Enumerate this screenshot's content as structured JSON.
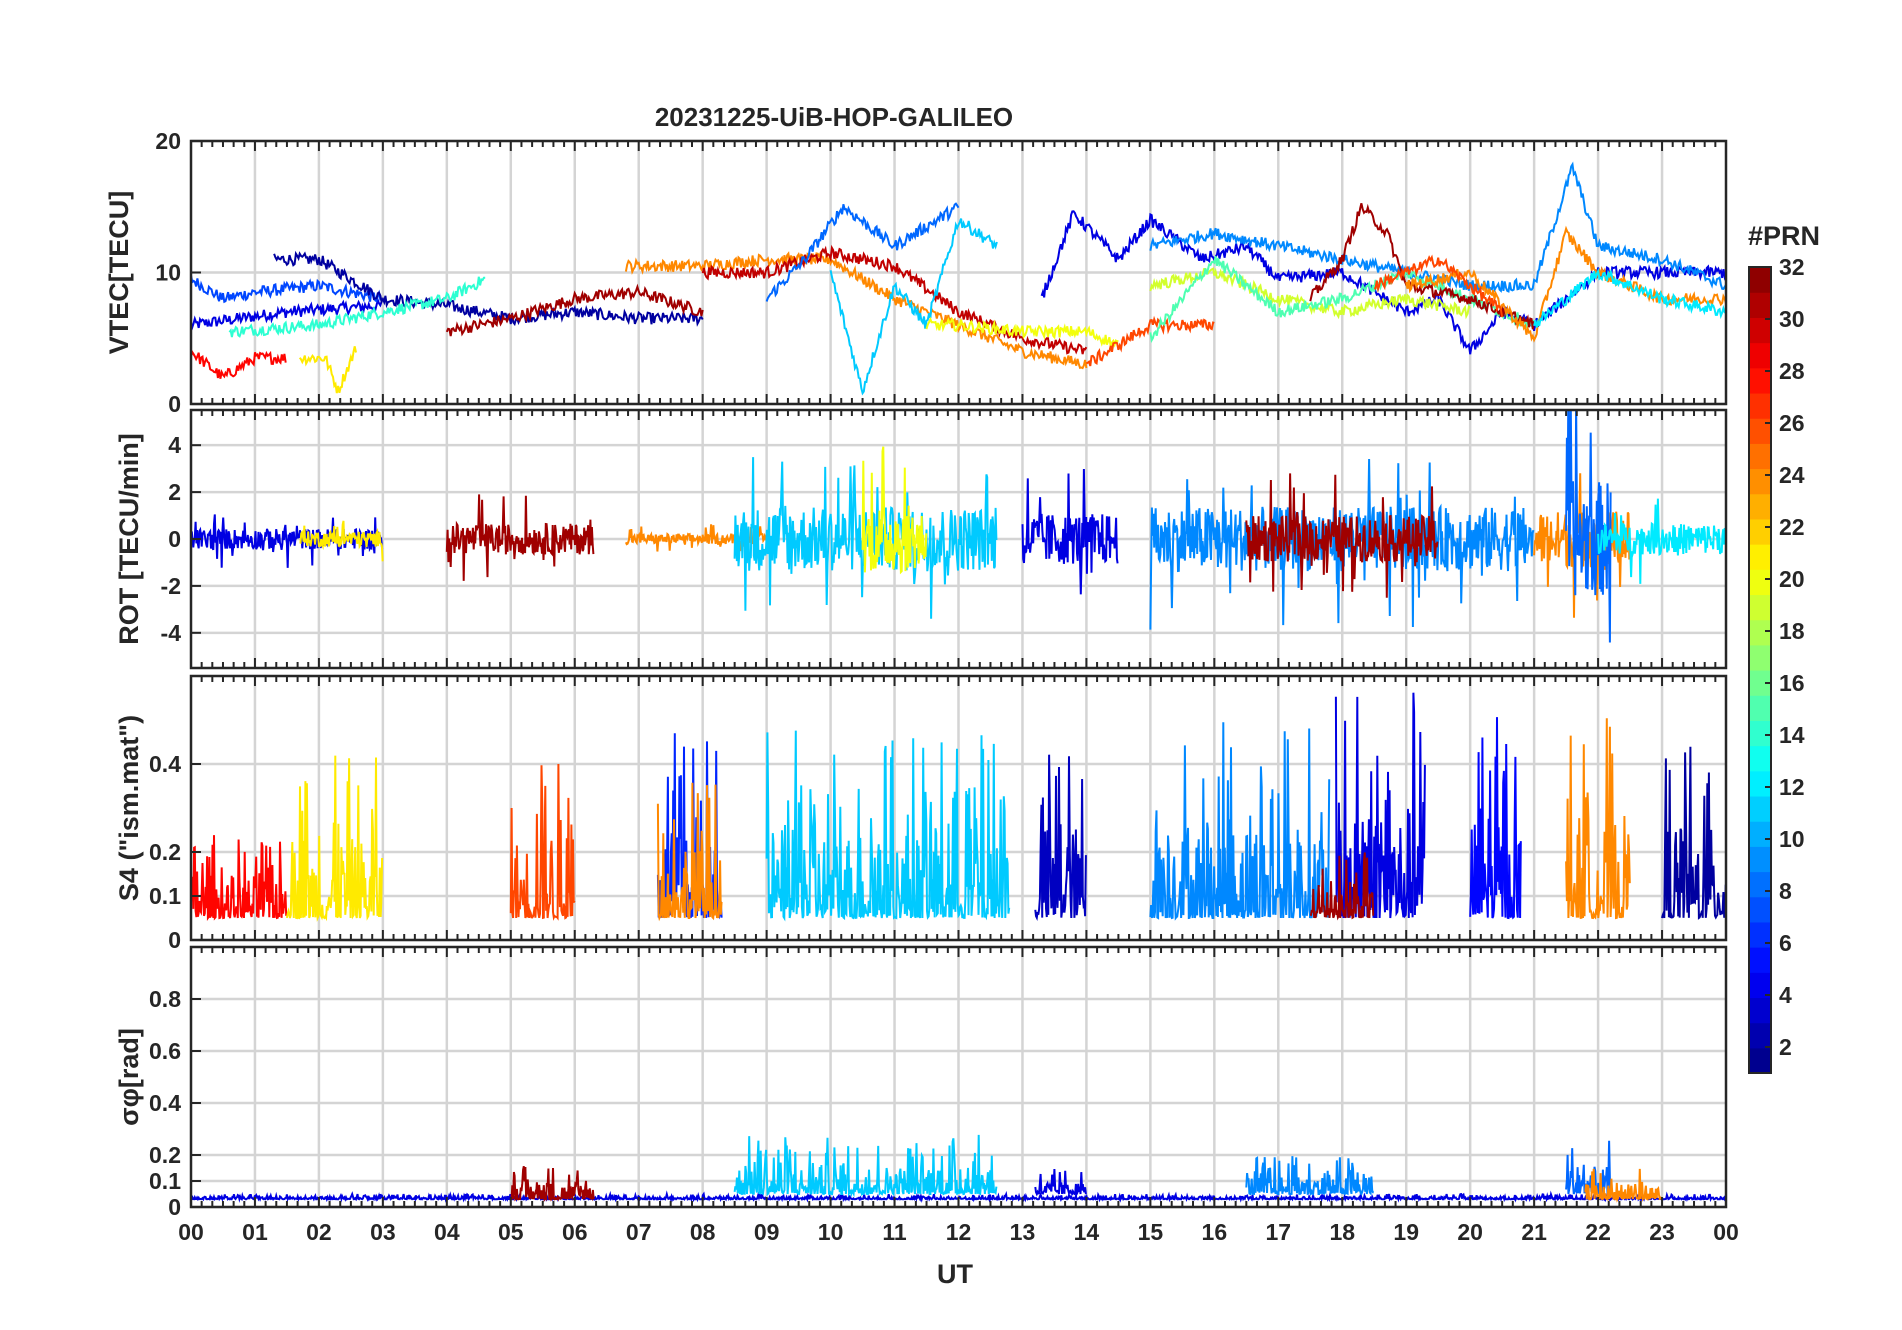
{
  "figure": {
    "title": "20231225-UiB-HOP-GALILEO",
    "xlabel": "UT",
    "x_tick_labels": [
      "00",
      "01",
      "02",
      "03",
      "04",
      "05",
      "06",
      "07",
      "08",
      "09",
      "10",
      "11",
      "12",
      "13",
      "14",
      "15",
      "16",
      "17",
      "18",
      "19",
      "20",
      "21",
      "22",
      "23",
      "00"
    ],
    "colorbar": {
      "label": "#PRN",
      "range": [
        1,
        32
      ],
      "levels": 32,
      "tick_values": [
        2,
        4,
        6,
        8,
        10,
        12,
        14,
        16,
        18,
        20,
        22,
        24,
        26,
        28,
        30,
        32
      ],
      "tick_labels": [
        "2",
        "4",
        "6",
        "8",
        "10",
        "12",
        "14",
        "16",
        "18",
        "20",
        "22",
        "24",
        "26",
        "28",
        "30",
        "32"
      ],
      "colormap": "jet",
      "colormap_stops": [
        "#000080",
        "#0000ff",
        "#00ffff",
        "#ffff00",
        "#ff0000",
        "#800000"
      ]
    }
  },
  "chart_data": [
    {
      "type": "line",
      "panel": "vtec",
      "ylabel": "VTEC[TECU]",
      "ylim": [
        0,
        20
      ],
      "y_tick_values": [
        0,
        10,
        20
      ],
      "y_tick_labels": [
        "0",
        "10",
        "20"
      ],
      "xlim": [
        0,
        24
      ],
      "grid": true,
      "series": [
        {
          "prn": 4,
          "x": [
            0.0,
            1.5,
            3.0
          ],
          "y": [
            6,
            7,
            7.5
          ]
        },
        {
          "prn": 7,
          "x": [
            0.0,
            0.5,
            1.0,
            2.0,
            3.0
          ],
          "y": [
            9.5,
            8,
            8.5,
            9,
            8
          ]
        },
        {
          "prn": 2,
          "x": [
            1.3,
            2.0,
            3.0,
            4.0,
            5.0,
            6.0,
            7.0,
            8.0
          ],
          "y": [
            11,
            11,
            8,
            7.5,
            6.5,
            7,
            6.5,
            6.5
          ]
        },
        {
          "prn": 28,
          "x": [
            0.0,
            0.5,
            1.0,
            1.5
          ],
          "y": [
            4,
            2,
            3.5,
            3.5
          ]
        },
        {
          "prn": 21,
          "x": [
            1.7,
            2.1,
            2.3,
            2.6
          ],
          "y": [
            3.5,
            3.5,
            1,
            4.5
          ]
        },
        {
          "prn": 14,
          "x": [
            0.6,
            2.0,
            3.0,
            4.0,
            4.6
          ],
          "y": [
            5.5,
            6,
            7,
            8,
            9.5
          ]
        },
        {
          "prn": 31,
          "x": [
            4.0,
            5.0,
            6.0,
            7.0,
            8.0
          ],
          "y": [
            5.5,
            6.5,
            8,
            8.5,
            7
          ]
        },
        {
          "prn": 24,
          "x": [
            6.8,
            8.0,
            9.0,
            10.0,
            11.0,
            12.0,
            13.0,
            14.0
          ],
          "y": [
            10.5,
            10.5,
            11,
            11,
            8,
            6,
            4,
            3
          ]
        },
        {
          "prn": 30,
          "x": [
            8.0,
            9.0,
            10.0,
            11.0,
            12.0,
            13.0,
            14.0
          ],
          "y": [
            10,
            10,
            11.5,
            10.5,
            7,
            5,
            4
          ]
        },
        {
          "prn": 8,
          "x": [
            9.0,
            9.6,
            10.2,
            11.0,
            12.0
          ],
          "y": [
            8,
            11,
            15,
            12,
            15
          ]
        },
        {
          "prn": 11,
          "x": [
            10.0,
            10.5,
            11.0,
            11.5,
            12.0,
            12.6
          ],
          "y": [
            10,
            1,
            9,
            6,
            14,
            12
          ]
        },
        {
          "prn": 20,
          "x": [
            11.5,
            12.0,
            13.0,
            14.0,
            14.5
          ],
          "y": [
            6,
            6,
            5.5,
            5.5,
            4.5
          ]
        },
        {
          "prn": 4,
          "x": [
            13.3,
            13.8,
            14.5,
            15.0,
            15.8,
            16.5,
            17.0,
            18.0,
            19.0,
            19.5,
            20.0,
            20.5,
            21.0,
            22.0,
            23.0,
            24.0
          ],
          "y": [
            8,
            14.5,
            11,
            14,
            11,
            12,
            9.5,
            10,
            7,
            8,
            4,
            7,
            6,
            10,
            10,
            10
          ]
        },
        {
          "prn": 9,
          "x": [
            15.0,
            16.0,
            17.0,
            18.0,
            19.0,
            20.0,
            21.0,
            21.6,
            22.0,
            23.0,
            24.0
          ],
          "y": [
            12,
            13,
            12,
            11,
            10,
            9,
            9,
            18,
            12,
            11,
            9
          ]
        },
        {
          "prn": 26,
          "x": [
            14.0,
            15.0,
            16.0
          ],
          "y": [
            3,
            6,
            6
          ]
        },
        {
          "prn": 19,
          "x": [
            15.0,
            16.0,
            17.0,
            18.0,
            19.0,
            20.0
          ],
          "y": [
            9,
            10,
            8,
            7,
            8,
            7
          ]
        },
        {
          "prn": 15,
          "x": [
            15.0,
            16.0,
            17.0,
            18.0,
            19.0,
            20.0,
            21.0
          ],
          "y": [
            5,
            11,
            7,
            8,
            10,
            8,
            6
          ]
        },
        {
          "prn": 31,
          "x": [
            17.5,
            18.0,
            18.3,
            18.7,
            19.0,
            20.0,
            21.0
          ],
          "y": [
            8,
            11,
            15,
            13,
            9,
            8,
            6
          ]
        },
        {
          "prn": 24,
          "x": [
            19.0,
            20.0,
            21.0,
            21.5,
            22.0,
            23.0,
            24.0
          ],
          "y": [
            9,
            10,
            5,
            13,
            10,
            8,
            8
          ]
        },
        {
          "prn": 12,
          "x": [
            21.0,
            22.0,
            23.0,
            24.0
          ],
          "y": [
            6,
            10,
            8,
            7
          ]
        },
        {
          "prn": 26,
          "x": [
            18.5,
            19.5,
            20.5
          ],
          "y": [
            9,
            11,
            7
          ]
        }
      ]
    },
    {
      "type": "line",
      "panel": "rot",
      "ylabel": "ROT [TECU/min]",
      "ylim": [
        -5.5,
        5.5
      ],
      "y_tick_values": [
        -4,
        -2,
        0,
        2,
        4
      ],
      "y_tick_labels": [
        "-4",
        "-2",
        "0",
        "2",
        "4"
      ],
      "xlim": [
        0,
        24
      ],
      "grid": true,
      "series": [
        {
          "prn": 4,
          "x": [
            0.0,
            3.0
          ],
          "y": [
            0,
            0
          ],
          "amplitude": 0.8
        },
        {
          "prn": 21,
          "x": [
            1.7,
            3.0
          ],
          "y": [
            0,
            0
          ],
          "amplitude": 0.6
        },
        {
          "prn": 31,
          "x": [
            4.0,
            6.3
          ],
          "y": [
            0,
            0
          ],
          "amplitude": 1.2
        },
        {
          "prn": 24,
          "x": [
            6.8,
            9.0
          ],
          "y": [
            0,
            0
          ],
          "amplitude": 0.4
        },
        {
          "prn": 11,
          "x": [
            8.5,
            12.6
          ],
          "y": [
            0,
            0
          ],
          "amplitude": 2.5
        },
        {
          "prn": 20,
          "x": [
            10.5,
            11.5
          ],
          "y": [
            0,
            0
          ],
          "amplitude": 2.6
        },
        {
          "prn": 4,
          "x": [
            13.0,
            14.5
          ],
          "y": [
            0,
            0
          ],
          "amplitude": 2.0
        },
        {
          "prn": 9,
          "x": [
            15.0,
            21.0
          ],
          "y": [
            0,
            0
          ],
          "amplitude": 2.5
        },
        {
          "prn": 31,
          "x": [
            16.5,
            19.5
          ],
          "y": [
            0,
            0
          ],
          "amplitude": 1.8
        },
        {
          "prn": 24,
          "x": [
            21.0,
            22.5
          ],
          "y": [
            0,
            0
          ],
          "amplitude": 2.2
        },
        {
          "prn": 8,
          "x": [
            21.5,
            22.2
          ],
          "y": [
            0,
            0
          ],
          "amplitude": 4.5
        },
        {
          "prn": 12,
          "x": [
            22.0,
            24.0
          ],
          "y": [
            0,
            0
          ],
          "amplitude": 1.2
        }
      ]
    },
    {
      "type": "line",
      "panel": "s4",
      "ylabel": "S4 (\"ism.mat\")",
      "ylim": [
        0,
        0.6
      ],
      "y_tick_values": [
        0,
        0.1,
        0.2,
        0.4
      ],
      "y_tick_labels": [
        "0",
        "0.1",
        "0.2",
        "0.4"
      ],
      "xlim": [
        0,
        24
      ],
      "grid": true,
      "series": [
        {
          "prn": 28,
          "x": [
            0.0,
            1.5
          ],
          "y": [
            0.05,
            0.25
          ]
        },
        {
          "prn": 21,
          "x": [
            1.5,
            3.0
          ],
          "y": [
            0.05,
            0.42
          ]
        },
        {
          "prn": 26,
          "x": [
            5.0,
            6.0
          ],
          "y": [
            0.05,
            0.42
          ]
        },
        {
          "prn": 6,
          "x": [
            7.3,
            8.3
          ],
          "y": [
            0.05,
            0.48
          ]
        },
        {
          "prn": 24,
          "x": [
            7.3,
            8.3
          ],
          "y": [
            0.05,
            0.38
          ]
        },
        {
          "prn": 11,
          "x": [
            9.0,
            12.8
          ],
          "y": [
            0.05,
            0.48
          ]
        },
        {
          "prn": 3,
          "x": [
            13.2,
            14.0
          ],
          "y": [
            0.05,
            0.48
          ]
        },
        {
          "prn": 9,
          "x": [
            15.0,
            17.8
          ],
          "y": [
            0.05,
            0.5
          ]
        },
        {
          "prn": 4,
          "x": [
            17.9,
            19.3
          ],
          "y": [
            0.05,
            0.58
          ]
        },
        {
          "prn": 31,
          "x": [
            17.5,
            18.5
          ],
          "y": [
            0.05,
            0.2
          ]
        },
        {
          "prn": 5,
          "x": [
            20.0,
            20.8
          ],
          "y": [
            0.05,
            0.52
          ]
        },
        {
          "prn": 24,
          "x": [
            21.5,
            22.5
          ],
          "y": [
            0.05,
            0.52
          ]
        },
        {
          "prn": 2,
          "x": [
            23.0,
            24.0
          ],
          "y": [
            0.05,
            0.46
          ]
        }
      ]
    },
    {
      "type": "line",
      "panel": "sigma_phi",
      "ylabel": "σφ[rad]",
      "ylim": [
        0,
        1
      ],
      "y_tick_values": [
        0,
        0.1,
        0.2,
        0.4,
        0.6,
        0.8
      ],
      "y_tick_labels": [
        "0",
        "0.1",
        "0.2",
        "0.4",
        "0.6",
        "0.8"
      ],
      "xlim": [
        0,
        24
      ],
      "grid": true,
      "series": [
        {
          "prn": 4,
          "x": [
            0.0,
            24.0
          ],
          "y": [
            0.03,
            0.05
          ]
        },
        {
          "prn": 31,
          "x": [
            5.0,
            6.3
          ],
          "y": [
            0.03,
            0.17
          ]
        },
        {
          "prn": 11,
          "x": [
            8.5,
            12.6
          ],
          "y": [
            0.05,
            0.28
          ]
        },
        {
          "prn": 4,
          "x": [
            13.2,
            14.0
          ],
          "y": [
            0.05,
            0.15
          ]
        },
        {
          "prn": 9,
          "x": [
            16.5,
            18.5
          ],
          "y": [
            0.05,
            0.2
          ]
        },
        {
          "prn": 8,
          "x": [
            21.5,
            22.2
          ],
          "y": [
            0.05,
            0.26
          ]
        },
        {
          "prn": 24,
          "x": [
            21.8,
            23.0
          ],
          "y": [
            0.03,
            0.15
          ]
        }
      ]
    }
  ]
}
